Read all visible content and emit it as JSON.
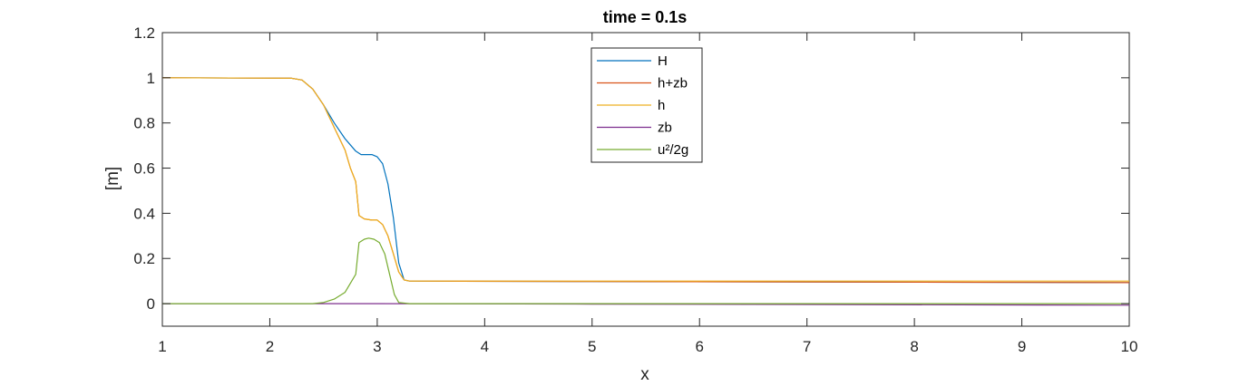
{
  "chart_data": {
    "type": "line",
    "title": "time = 0.1s",
    "xlabel": "x",
    "ylabel": "[m]",
    "xlim": [
      1,
      10
    ],
    "ylim": [
      -0.1,
      1.2
    ],
    "xticks": [
      "1",
      "2",
      "3",
      "4",
      "5",
      "6",
      "7",
      "8",
      "9",
      "10"
    ],
    "yticks": [
      "0",
      "0.2",
      "0.4",
      "0.6",
      "0.8",
      "1",
      "1.2"
    ],
    "grid": false,
    "legend_position": "top-center",
    "series": [
      {
        "name": "H",
        "color": "#0072BD",
        "points": [
          [
            1,
            1.0
          ],
          [
            2.2,
            0.998
          ],
          [
            2.3,
            0.99
          ],
          [
            2.4,
            0.95
          ],
          [
            2.5,
            0.88
          ],
          [
            2.6,
            0.8
          ],
          [
            2.7,
            0.73
          ],
          [
            2.8,
            0.675
          ],
          [
            2.85,
            0.66
          ],
          [
            2.95,
            0.66
          ],
          [
            3.0,
            0.65
          ],
          [
            3.05,
            0.62
          ],
          [
            3.1,
            0.53
          ],
          [
            3.15,
            0.38
          ],
          [
            3.2,
            0.18
          ],
          [
            3.25,
            0.105
          ],
          [
            3.3,
            0.1
          ],
          [
            5,
            0.098
          ],
          [
            10,
            0.093
          ]
        ]
      },
      {
        "name": "h+zb",
        "color": "#D95319",
        "points": [
          [
            1,
            1.0
          ],
          [
            2.2,
            0.998
          ],
          [
            2.3,
            0.99
          ],
          [
            2.4,
            0.95
          ],
          [
            2.5,
            0.88
          ],
          [
            2.6,
            0.78
          ],
          [
            2.7,
            0.68
          ],
          [
            2.75,
            0.6
          ],
          [
            2.8,
            0.54
          ],
          [
            2.83,
            0.39
          ],
          [
            2.88,
            0.375
          ],
          [
            2.95,
            0.37
          ],
          [
            3.0,
            0.37
          ],
          [
            3.05,
            0.35
          ],
          [
            3.1,
            0.3
          ],
          [
            3.15,
            0.22
          ],
          [
            3.2,
            0.14
          ],
          [
            3.25,
            0.105
          ],
          [
            3.3,
            0.1
          ],
          [
            5,
            0.098
          ],
          [
            10,
            0.093
          ]
        ]
      },
      {
        "name": "h",
        "color": "#EDB120",
        "points": [
          [
            1,
            1.0
          ],
          [
            2.2,
            0.998
          ],
          [
            2.3,
            0.99
          ],
          [
            2.4,
            0.95
          ],
          [
            2.5,
            0.88
          ],
          [
            2.6,
            0.78
          ],
          [
            2.7,
            0.68
          ],
          [
            2.75,
            0.6
          ],
          [
            2.8,
            0.54
          ],
          [
            2.83,
            0.39
          ],
          [
            2.88,
            0.375
          ],
          [
            2.95,
            0.37
          ],
          [
            3.0,
            0.37
          ],
          [
            3.05,
            0.35
          ],
          [
            3.1,
            0.3
          ],
          [
            3.15,
            0.22
          ],
          [
            3.2,
            0.14
          ],
          [
            3.25,
            0.105
          ],
          [
            3.3,
            0.1
          ],
          [
            5,
            0.1
          ],
          [
            10,
            0.1
          ]
        ]
      },
      {
        "name": "zb",
        "color": "#7E2F8E",
        "points": [
          [
            1,
            0.0
          ],
          [
            3,
            0.0
          ],
          [
            5,
            -0.002
          ],
          [
            10,
            -0.007
          ]
        ]
      },
      {
        "name": "u²/2g",
        "color": "#77AC30",
        "points": [
          [
            1,
            0.0
          ],
          [
            2.4,
            0.0
          ],
          [
            2.5,
            0.005
          ],
          [
            2.6,
            0.02
          ],
          [
            2.7,
            0.05
          ],
          [
            2.8,
            0.13
          ],
          [
            2.83,
            0.27
          ],
          [
            2.88,
            0.285
          ],
          [
            2.92,
            0.29
          ],
          [
            2.97,
            0.285
          ],
          [
            3.02,
            0.27
          ],
          [
            3.07,
            0.22
          ],
          [
            3.12,
            0.12
          ],
          [
            3.16,
            0.04
          ],
          [
            3.2,
            0.005
          ],
          [
            3.3,
            0.0
          ],
          [
            10,
            0.0
          ]
        ]
      }
    ]
  }
}
